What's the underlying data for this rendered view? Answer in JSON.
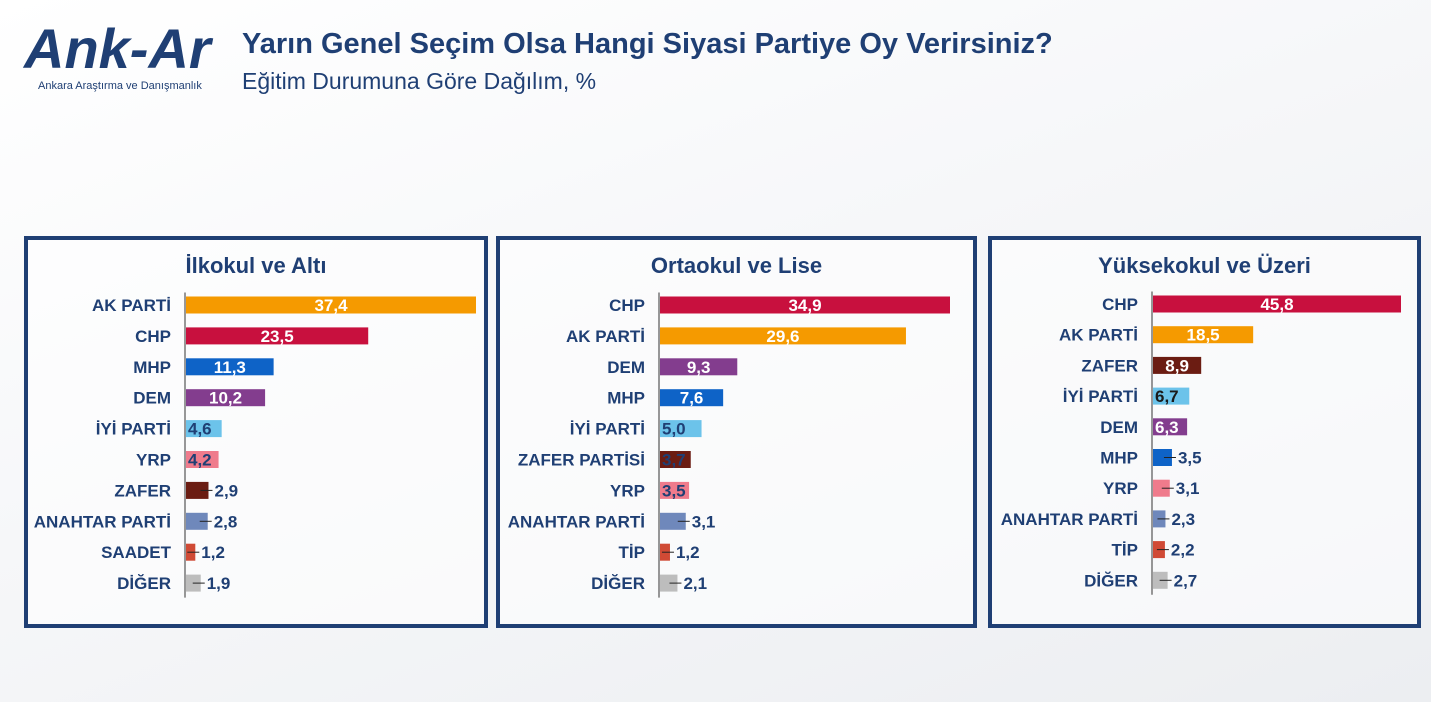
{
  "header": {
    "logo_text": "Ank-Ar",
    "logo_sub": "Ankara Araştırma ve Danışmanlık",
    "title": "Yarın Genel Seçim Olsa Hangi Siyasi Partiye Oy Verirsiniz?",
    "subtitle": "Eğitim Durumuna Göre Dağılım, %"
  },
  "chart_data": [
    {
      "type": "bar",
      "orientation": "horizontal",
      "title": "İlkokul ve Altı",
      "categories": [
        "AK PARTİ",
        "CHP",
        "MHP",
        "DEM",
        "İYİ PARTİ",
        "YRP",
        "ZAFER",
        "ANAHTAR PARTİ",
        "SAADET",
        "DİĞER"
      ],
      "values": [
        37.4,
        23.5,
        11.3,
        10.2,
        4.6,
        4.2,
        2.9,
        2.8,
        1.2,
        1.9
      ],
      "labels": [
        "37,4",
        "23,5",
        "11,3",
        "10,2",
        "4,6",
        "4,2",
        "2,9",
        "2,8",
        "1,2",
        "1,9"
      ],
      "colors": [
        "#f59a00",
        "#c8103e",
        "#0e63c7",
        "#833d8e",
        "#6cc3ea",
        "#ef7b8c",
        "#6b1c12",
        "#6f88bb",
        "#d04a35",
        "#bdbdbd"
      ],
      "xlim": [
        0,
        37.4
      ]
    },
    {
      "type": "bar",
      "orientation": "horizontal",
      "title": "Ortaokul ve Lise",
      "categories": [
        "CHP",
        "AK PARTİ",
        "DEM",
        "MHP",
        "İYİ PARTİ",
        "ZAFER PARTİSİ",
        "YRP",
        "ANAHTAR PARTİ",
        "TİP",
        "DİĞER"
      ],
      "values": [
        34.9,
        29.6,
        9.3,
        7.6,
        5.0,
        3.7,
        3.5,
        3.1,
        1.2,
        2.1
      ],
      "labels": [
        "34,9",
        "29,6",
        "9,3",
        "7,6",
        "5,0",
        "3,7",
        "3,5",
        "3,1",
        "1,2",
        "2,1"
      ],
      "colors": [
        "#c8103e",
        "#f59a00",
        "#833d8e",
        "#0e63c7",
        "#6cc3ea",
        "#6b1c12",
        "#ef7b8c",
        "#6f88bb",
        "#d04a35",
        "#bdbdbd"
      ],
      "xlim": [
        0,
        34.9
      ]
    },
    {
      "type": "bar",
      "orientation": "horizontal",
      "title": "Yüksekokul ve Üzeri",
      "categories": [
        "CHP",
        "AK PARTİ",
        "ZAFER",
        "İYİ PARTİ",
        "DEM",
        "MHP",
        "YRP",
        "ANAHTAR PARTİ",
        "TİP",
        "DİĞER"
      ],
      "values": [
        45.8,
        18.5,
        8.9,
        6.7,
        6.3,
        3.5,
        3.1,
        2.3,
        2.2,
        2.7
      ],
      "labels": [
        "45,8",
        "18,5",
        "8,9",
        "6,7",
        "6,3",
        "3,5",
        "3,1",
        "2,3",
        "2,2",
        "2,7"
      ],
      "colors": [
        "#c8103e",
        "#f59a00",
        "#6b1c12",
        "#6cc3ea",
        "#833d8e",
        "#0e63c7",
        "#ef7b8c",
        "#6f88bb",
        "#d04a35",
        "#bdbdbd"
      ],
      "label_colors": [
        "#ffffff",
        "#ffffff",
        "#ffffff",
        "#1a1a1a",
        "#ffffff",
        "#1f3f74",
        "#1f3f74",
        "#1f3f74",
        "#1f3f74",
        "#1f3f74"
      ],
      "xlim": [
        0,
        45.8
      ]
    }
  ]
}
